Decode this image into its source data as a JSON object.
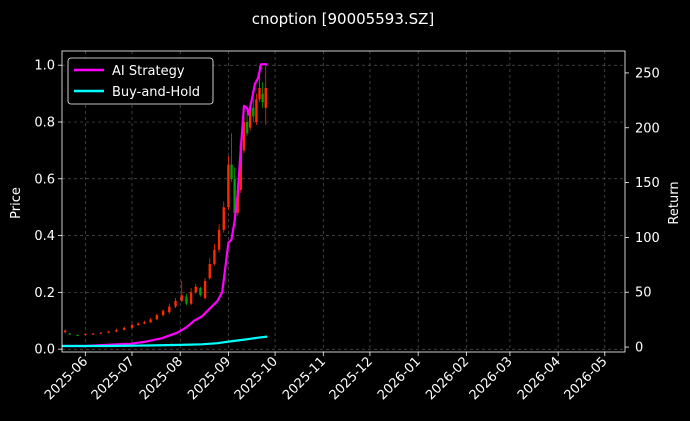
{
  "chart_data": {
    "type": "line",
    "title": "cnoption [90005593.SZ]",
    "ylabel_left": "Price",
    "ylabel_right": "Return",
    "ylim_left": [
      -0.01,
      1.05
    ],
    "ylim_right": [
      -4.5,
      270
    ],
    "yticks_left": [
      0.0,
      0.2,
      0.4,
      0.6,
      0.8,
      1.0
    ],
    "ytick_labels_left": [
      "0.0",
      "0.2",
      "0.4",
      "0.6",
      "0.8",
      "1.0"
    ],
    "yticks_right": [
      0,
      50,
      100,
      150,
      200,
      250
    ],
    "ytick_labels_right": [
      "0",
      "50",
      "100",
      "150",
      "200",
      "250"
    ],
    "xlim": [
      "2025-05-17",
      "2026-05-14"
    ],
    "xticks": [
      "2025-06-01",
      "2025-07-01",
      "2025-08-01",
      "2025-09-01",
      "2025-10-01",
      "2025-11-01",
      "2025-12-01",
      "2026-01-01",
      "2026-02-01",
      "2026-03-01",
      "2026-04-01",
      "2026-05-01"
    ],
    "xtick_labels": [
      "2025-06",
      "2025-07",
      "2025-08",
      "2025-09",
      "2025-10",
      "2025-11",
      "2025-12",
      "2026-01",
      "2026-02",
      "2026-03",
      "2026-04",
      "2026-05"
    ],
    "grid": true,
    "legend": {
      "position": "top-left",
      "entries": [
        {
          "label": "AI Strategy",
          "color": "#ff00ff"
        },
        {
          "label": "Buy-and-Hold",
          "color": "#00ffff"
        }
      ]
    },
    "colors": {
      "background": "#000000",
      "ai_strategy": "#ff00ff",
      "buy_and_hold": "#00ffff",
      "candle_up": "#ff2a00",
      "candle_down": "#00a000",
      "grid": "#666666"
    },
    "candles_price": {
      "dates": [
        "2025-05-19",
        "2025-05-22",
        "2025-05-27",
        "2025-06-01",
        "2025-06-06",
        "2025-06-11",
        "2025-06-16",
        "2025-06-21",
        "2025-06-26",
        "2025-07-01",
        "2025-07-05",
        "2025-07-09",
        "2025-07-13",
        "2025-07-17",
        "2025-07-21",
        "2025-07-25",
        "2025-07-29",
        "2025-08-02",
        "2025-08-05",
        "2025-08-08",
        "2025-08-11",
        "2025-08-14",
        "2025-08-17",
        "2025-08-20",
        "2025-08-23",
        "2025-08-26",
        "2025-08-29",
        "2025-09-01",
        "2025-09-03",
        "2025-09-05",
        "2025-09-07",
        "2025-09-09",
        "2025-09-11",
        "2025-09-13",
        "2025-09-15",
        "2025-09-17",
        "2025-09-19",
        "2025-09-21",
        "2025-09-23",
        "2025-09-25"
      ],
      "open": [
        0.06,
        0.055,
        0.05,
        0.05,
        0.052,
        0.055,
        0.058,
        0.062,
        0.068,
        0.075,
        0.085,
        0.09,
        0.095,
        0.105,
        0.12,
        0.13,
        0.15,
        0.17,
        0.185,
        0.16,
        0.2,
        0.215,
        0.18,
        0.25,
        0.3,
        0.35,
        0.42,
        0.5,
        0.65,
        0.6,
        0.48,
        0.56,
        0.7,
        0.8,
        0.78,
        0.85,
        0.8,
        0.88,
        0.9,
        0.85
      ],
      "close": [
        0.065,
        0.052,
        0.048,
        0.053,
        0.055,
        0.058,
        0.062,
        0.068,
        0.075,
        0.085,
        0.09,
        0.095,
        0.105,
        0.12,
        0.135,
        0.15,
        0.17,
        0.19,
        0.16,
        0.2,
        0.22,
        0.19,
        0.24,
        0.3,
        0.35,
        0.42,
        0.5,
        0.65,
        0.6,
        0.48,
        0.56,
        0.72,
        0.8,
        0.76,
        0.85,
        0.82,
        0.88,
        0.92,
        0.87,
        0.92
      ],
      "high": [
        0.07,
        0.058,
        0.052,
        0.055,
        0.058,
        0.06,
        0.065,
        0.072,
        0.08,
        0.09,
        0.095,
        0.1,
        0.11,
        0.125,
        0.14,
        0.16,
        0.18,
        0.24,
        0.195,
        0.215,
        0.23,
        0.22,
        0.25,
        0.32,
        0.37,
        0.44,
        0.52,
        0.68,
        0.76,
        0.64,
        0.58,
        0.74,
        0.82,
        0.83,
        0.87,
        0.88,
        0.9,
        1.0,
        0.94,
        1.0
      ],
      "low": [
        0.055,
        0.05,
        0.046,
        0.048,
        0.05,
        0.053,
        0.056,
        0.06,
        0.066,
        0.072,
        0.082,
        0.088,
        0.092,
        0.102,
        0.115,
        0.125,
        0.145,
        0.165,
        0.155,
        0.155,
        0.195,
        0.185,
        0.175,
        0.245,
        0.295,
        0.34,
        0.41,
        0.49,
        0.59,
        0.47,
        0.47,
        0.55,
        0.69,
        0.75,
        0.77,
        0.8,
        0.79,
        0.87,
        0.85,
        0.79
      ]
    },
    "series": [
      {
        "name": "AI Strategy",
        "axis": "right",
        "x": [
          "2025-05-17",
          "2025-06-01",
          "2025-06-15",
          "2025-06-30",
          "2025-07-10",
          "2025-07-20",
          "2025-07-30",
          "2025-08-05",
          "2025-08-10",
          "2025-08-15",
          "2025-08-20",
          "2025-08-25",
          "2025-08-28",
          "2025-09-01",
          "2025-09-03",
          "2025-09-05",
          "2025-09-07",
          "2025-09-09",
          "2025-09-11",
          "2025-09-13",
          "2025-09-14",
          "2025-09-16",
          "2025-09-18",
          "2025-09-20",
          "2025-09-22",
          "2025-09-24",
          "2025-09-26"
        ],
        "values": [
          1,
          1,
          2,
          3,
          5,
          8,
          13,
          18,
          24,
          28,
          35,
          42,
          50,
          95,
          98,
          115,
          140,
          182,
          220,
          218,
          212,
          225,
          240,
          245,
          258,
          258,
          258
        ]
      },
      {
        "name": "Buy-and-Hold",
        "axis": "right",
        "x": [
          "2025-05-17",
          "2025-06-01",
          "2025-06-15",
          "2025-07-01",
          "2025-07-15",
          "2025-08-01",
          "2025-08-15",
          "2025-08-25",
          "2025-09-01",
          "2025-09-10",
          "2025-09-15",
          "2025-09-20",
          "2025-09-26"
        ],
        "values": [
          1,
          1,
          1,
          1.2,
          1.5,
          2,
          2.5,
          3.5,
          5,
          6.5,
          7.5,
          8.5,
          9.5
        ]
      }
    ]
  }
}
